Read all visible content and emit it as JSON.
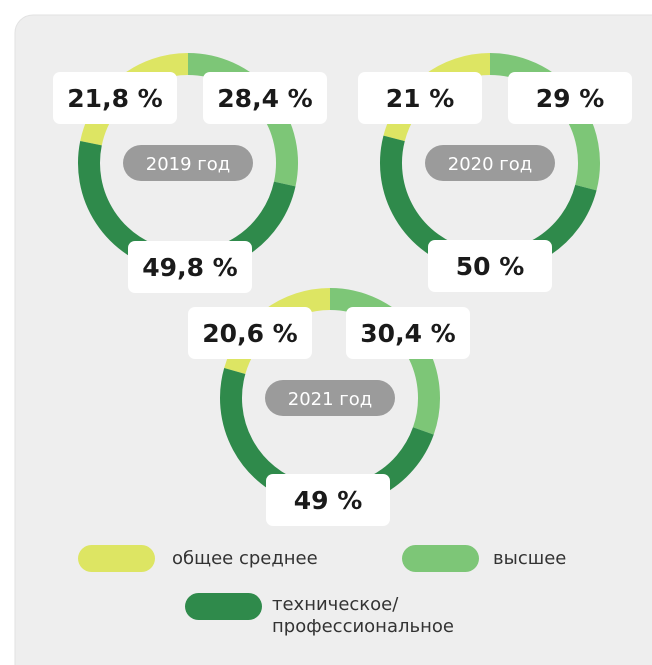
{
  "chart_data": [
    {
      "type": "donut",
      "title": "2019 год",
      "categories": [
        "общее среднее",
        "высшее",
        "техническое/профессиональное"
      ],
      "values": [
        21.8,
        28.4,
        49.8
      ],
      "value_labels": [
        "21,8 %",
        "28,4 %",
        "49,8 %"
      ],
      "colors": [
        "#dde563",
        "#7dc677",
        "#2f8a4b"
      ]
    },
    {
      "type": "donut",
      "title": "2020 год",
      "categories": [
        "общее среднее",
        "высшее",
        "техническое/профессиональное"
      ],
      "values": [
        21,
        29,
        50
      ],
      "value_labels": [
        "21 %",
        "29 %",
        "50 %"
      ],
      "colors": [
        "#dde563",
        "#7dc677",
        "#2f8a4b"
      ]
    },
    {
      "type": "donut",
      "title": "2021 год",
      "categories": [
        "общее среднее",
        "высшее",
        "техническое/профессиональное"
      ],
      "values": [
        20.6,
        30.4,
        49
      ],
      "value_labels": [
        "20,6 %",
        "30,4 %",
        "49 %"
      ],
      "colors": [
        "#dde563",
        "#7dc677",
        "#2f8a4b"
      ]
    }
  ]
}
